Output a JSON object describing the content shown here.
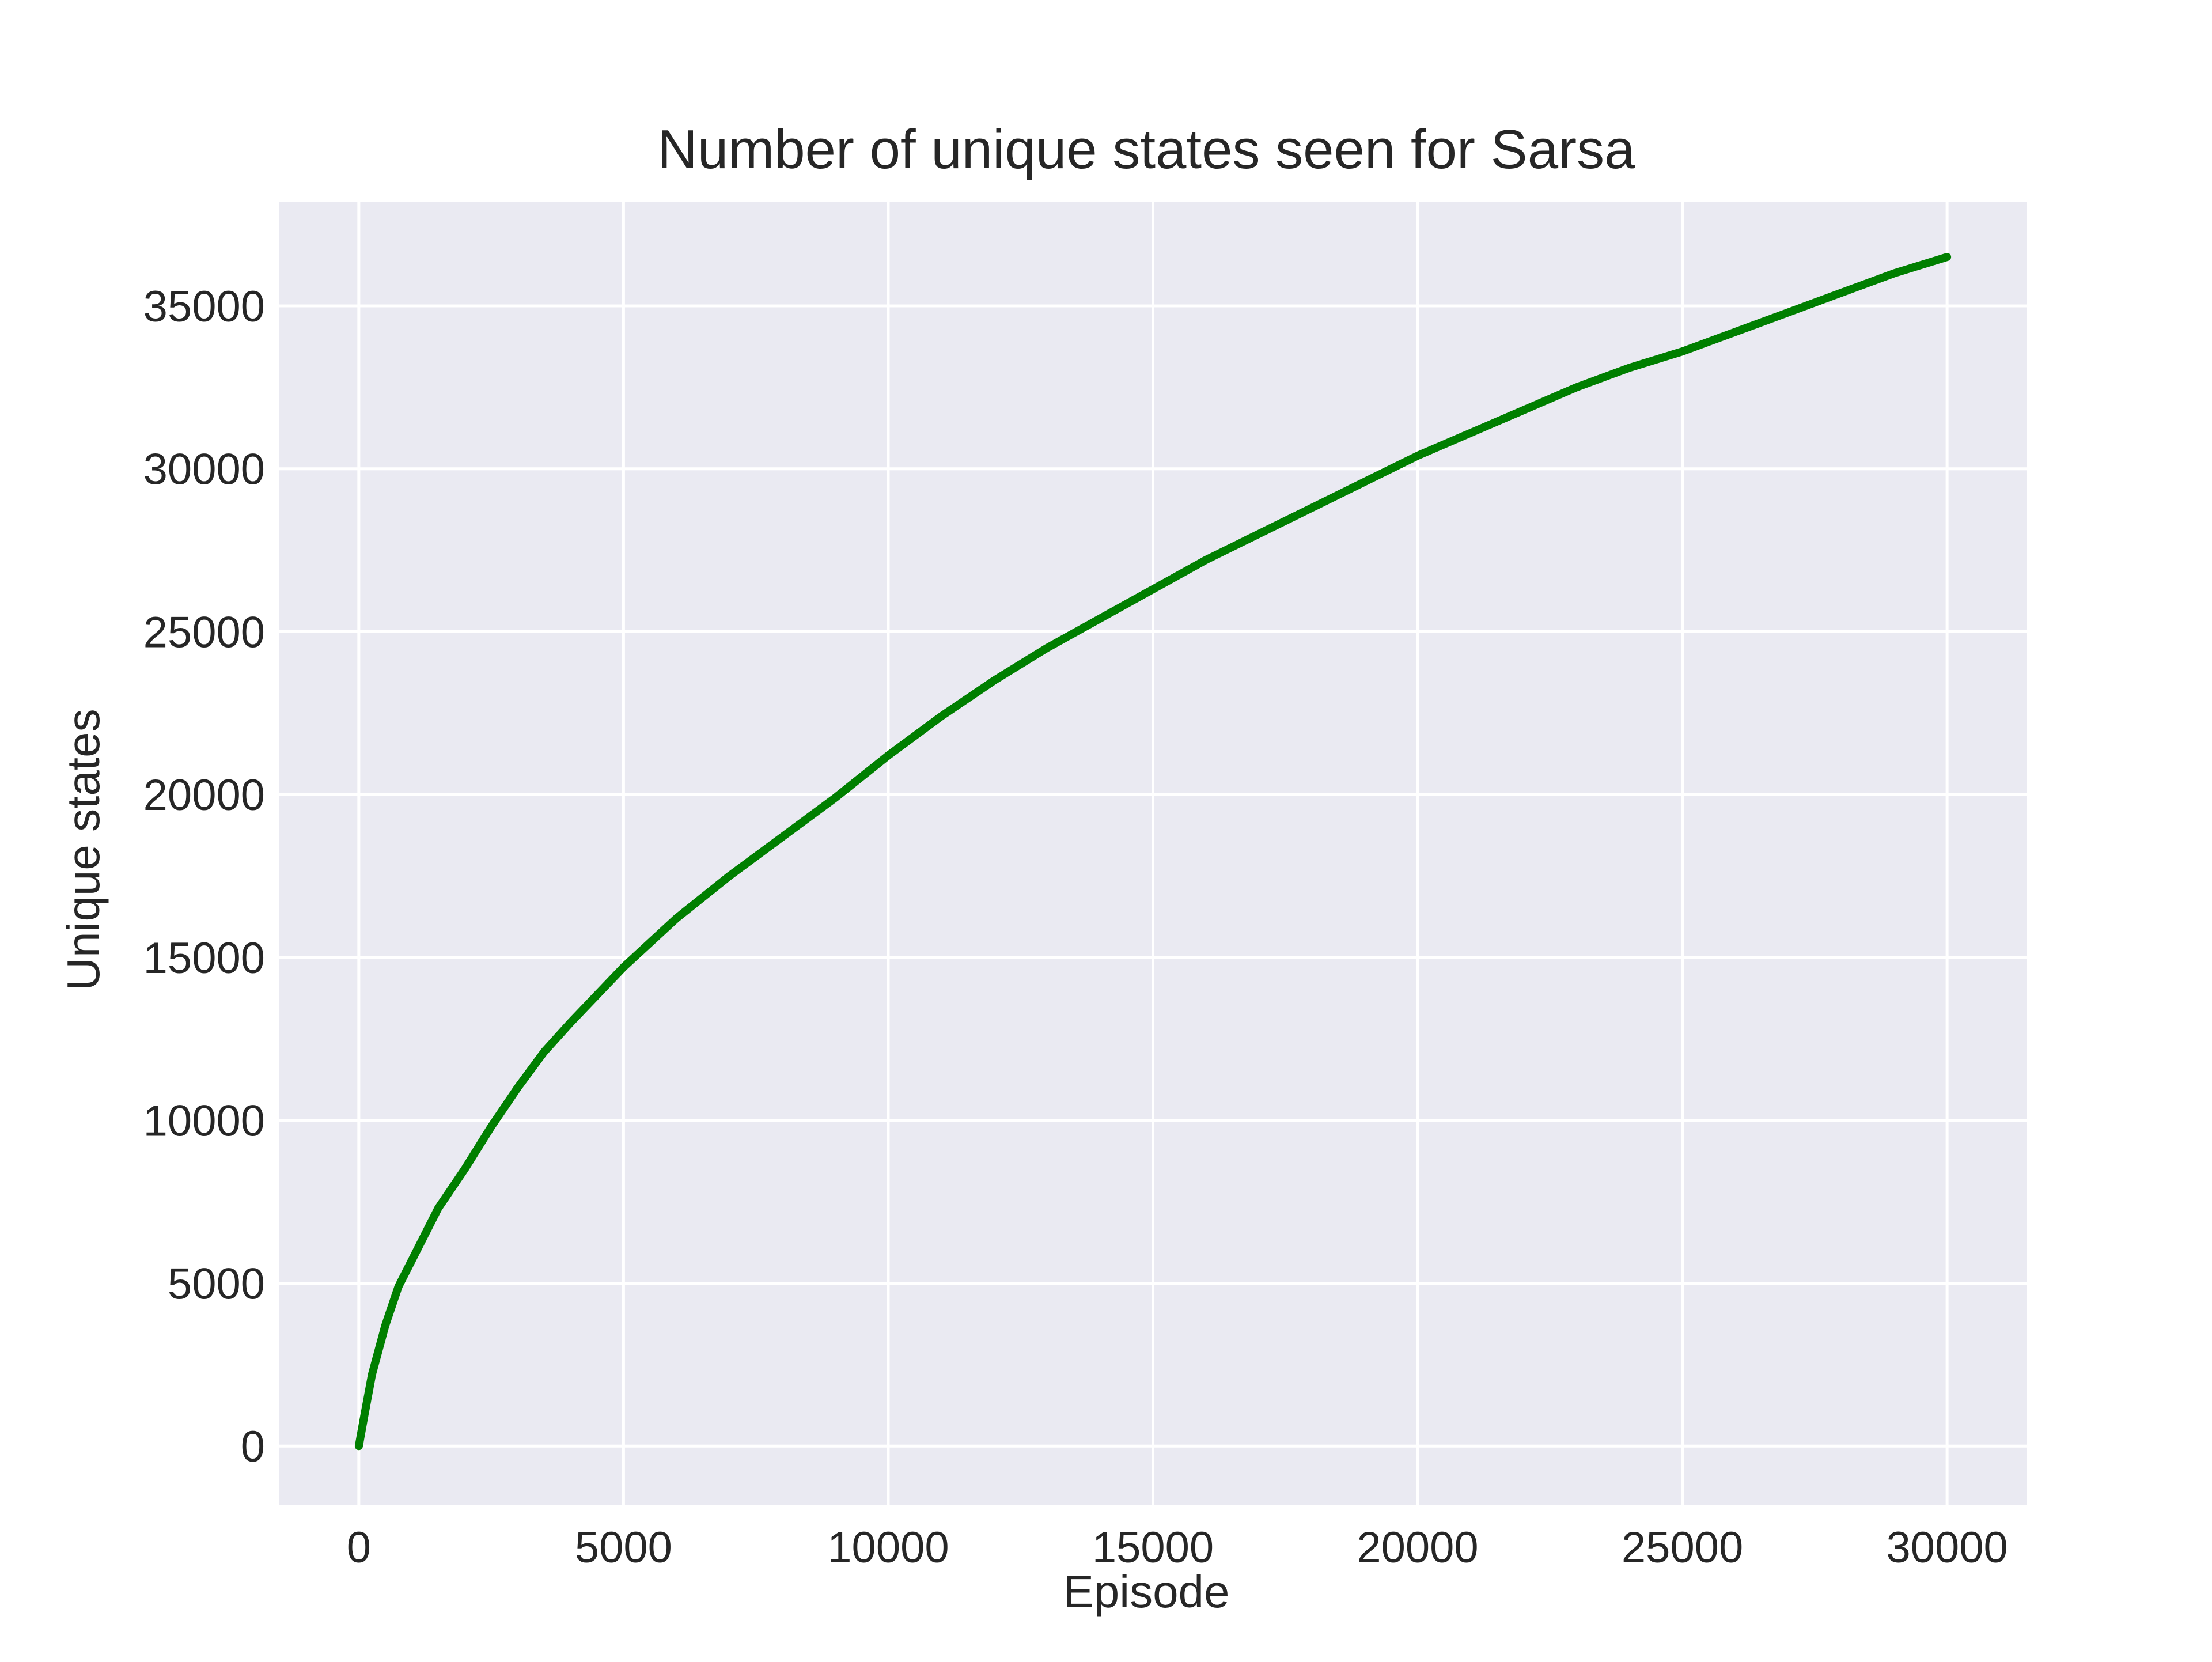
{
  "chart_data": {
    "type": "line",
    "title": "Number of unique states seen for Sarsa",
    "xlabel": "Episode",
    "ylabel": "Unique states",
    "xlim": [
      -1500,
      31500
    ],
    "ylim": [
      -1800,
      38200
    ],
    "x_ticks": [
      0,
      5000,
      10000,
      15000,
      20000,
      25000,
      30000
    ],
    "x_tick_labels": [
      "0",
      "5000",
      "10000",
      "15000",
      "20000",
      "25000",
      "30000"
    ],
    "y_ticks": [
      0,
      5000,
      10000,
      15000,
      20000,
      25000,
      30000,
      35000
    ],
    "y_tick_labels": [
      "0",
      "5000",
      "10000",
      "15000",
      "20000",
      "25000",
      "30000",
      "35000"
    ],
    "grid": true,
    "legend": "none",
    "background_color": "#EAEAF2",
    "grid_color": "#FFFFFF",
    "series": [
      {
        "color": "#007F00",
        "x": [
          0,
          100,
          250,
          500,
          750,
          1000,
          1500,
          2000,
          2500,
          3000,
          3500,
          4000,
          5000,
          6000,
          7000,
          8000,
          9000,
          10000,
          11000,
          12000,
          13000,
          14000,
          15000,
          16000,
          17000,
          18000,
          19000,
          20000,
          21000,
          22000,
          23000,
          24000,
          25000,
          26000,
          27000,
          28000,
          29000,
          30000
        ],
        "y": [
          0,
          900,
          2200,
          3700,
          4900,
          5700,
          7300,
          8500,
          9800,
          11000,
          12100,
          13000,
          14700,
          16200,
          17500,
          18700,
          19900,
          21200,
          22400,
          23500,
          24500,
          25400,
          26300,
          27200,
          28000,
          28800,
          29600,
          30400,
          31100,
          31800,
          32500,
          33100,
          33600,
          34200,
          34800,
          35400,
          36000,
          36500
        ]
      }
    ]
  }
}
